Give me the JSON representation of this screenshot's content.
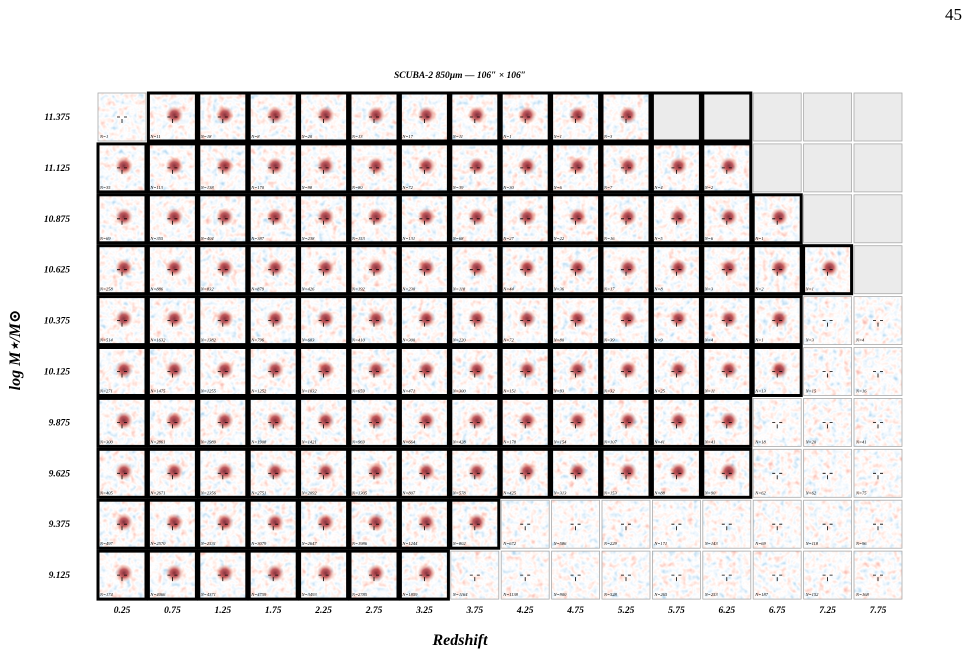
{
  "page_number": "45",
  "title": "SCUBA-2 850µm — 106″ × 106″",
  "xlabel": "Redshift",
  "ylabel": "log M⋆/M⊙",
  "columns": [
    "0.25",
    "0.75",
    "1.25",
    "1.75",
    "2.25",
    "2.75",
    "3.25",
    "3.75",
    "4.25",
    "4.75",
    "5.25",
    "5.75",
    "6.25",
    "6.75",
    "7.25",
    "7.75"
  ],
  "rows": [
    {
      "label": "11.375",
      "cells": [
        {
          "label": "N=1",
          "bold": false
        },
        {
          "label": "N=11",
          "bold": true
        },
        {
          "label": "N=18",
          "bold": true
        },
        {
          "label": "N=8",
          "bold": true
        },
        {
          "label": "N=20",
          "bold": true
        },
        {
          "label": "N=13",
          "bold": true
        },
        {
          "label": "N=17",
          "bold": true
        },
        {
          "label": "N=11",
          "bold": true
        },
        {
          "label": "N=1",
          "bold": true
        },
        {
          "label": "N=1",
          "bold": true
        },
        {
          "label": "N=3",
          "bold": true
        },
        {
          "bold": true
        },
        {
          "bold": true
        },
        {
          "bold": false
        },
        {
          "bold": false
        },
        {
          "bold": false
        }
      ]
    },
    {
      "label": "11.125",
      "cells": [
        {
          "label": "N=35",
          "bold": true
        },
        {
          "label": "N=113",
          "bold": true
        },
        {
          "label": "N=138",
          "bold": true
        },
        {
          "label": "N=170",
          "bold": true
        },
        {
          "label": "N=98",
          "bold": true
        },
        {
          "label": "N=80",
          "bold": true
        },
        {
          "label": "N=72",
          "bold": true
        },
        {
          "label": "N=39",
          "bold": true
        },
        {
          "label": "N=30",
          "bold": true
        },
        {
          "label": "N=6",
          "bold": true
        },
        {
          "label": "N=7",
          "bold": true
        },
        {
          "label": "N=4",
          "bold": true
        },
        {
          "label": "N=2",
          "bold": true
        },
        {
          "bold": false
        },
        {
          "bold": false
        },
        {
          "bold": false
        }
      ]
    },
    {
      "label": "10.875",
      "cells": [
        {
          "label": "N=69",
          "bold": true
        },
        {
          "label": "N=355",
          "bold": true
        },
        {
          "label": "N=404",
          "bold": true
        },
        {
          "label": "N=387",
          "bold": true
        },
        {
          "label": "N=238",
          "bold": true
        },
        {
          "label": "N=153",
          "bold": true
        },
        {
          "label": "N=131",
          "bold": true
        },
        {
          "label": "N=68",
          "bold": true
        },
        {
          "label": "N=27",
          "bold": true
        },
        {
          "label": "N=22",
          "bold": true
        },
        {
          "label": "N=16",
          "bold": true
        },
        {
          "label": "N=5",
          "bold": true
        },
        {
          "label": "N=6",
          "bold": true
        },
        {
          "label": "N=1",
          "bold": true
        },
        {
          "bold": false
        },
        {
          "bold": false
        }
      ]
    },
    {
      "label": "10.625",
      "cells": [
        {
          "label": "N=258",
          "bold": true
        },
        {
          "label": "N=886",
          "bold": true
        },
        {
          "label": "N=832",
          "bold": true
        },
        {
          "label": "N=879",
          "bold": true
        },
        {
          "label": "N=426",
          "bold": true
        },
        {
          "label": "N=192",
          "bold": true
        },
        {
          "label": "N=230",
          "bold": true
        },
        {
          "label": "N=118",
          "bold": true
        },
        {
          "label": "N=44",
          "bold": true
        },
        {
          "label": "N=36",
          "bold": true
        },
        {
          "label": "N=17",
          "bold": true
        },
        {
          "label": "N=8",
          "bold": true
        },
        {
          "label": "N=3",
          "bold": true
        },
        {
          "label": "N=2",
          "bold": true
        },
        {
          "label": "N=1",
          "bold": true
        },
        {
          "bold": false
        }
      ]
    },
    {
      "label": "10.375",
      "cells": [
        {
          "label": "N=514",
          "bold": true
        },
        {
          "label": "N=1632",
          "bold": true
        },
        {
          "label": "N=1382",
          "bold": true
        },
        {
          "label": "N=796",
          "bold": true
        },
        {
          "label": "N=603",
          "bold": true
        },
        {
          "label": "N=410",
          "bold": true
        },
        {
          "label": "N=300",
          "bold": true
        },
        {
          "label": "N=220",
          "bold": true
        },
        {
          "label": "N=72",
          "bold": true
        },
        {
          "label": "N=80",
          "bold": true
        },
        {
          "label": "N=39",
          "bold": true
        },
        {
          "label": "N=9",
          "bold": true
        },
        {
          "label": "N=4",
          "bold": true
        },
        {
          "label": "N=1",
          "bold": true
        },
        {
          "label": "N=3",
          "bold": false
        },
        {
          "label": "N=4",
          "bold": false
        }
      ]
    },
    {
      "label": "10.125",
      "cells": [
        {
          "label": "N=271",
          "bold": true
        },
        {
          "label": "N=1475",
          "bold": true
        },
        {
          "label": "N=1255",
          "bold": true
        },
        {
          "label": "N=1252",
          "bold": true
        },
        {
          "label": "N=1032",
          "bold": true
        },
        {
          "label": "N=659",
          "bold": true
        },
        {
          "label": "N=471",
          "bold": true
        },
        {
          "label": "N=300",
          "bold": true
        },
        {
          "label": "N=151",
          "bold": true
        },
        {
          "label": "N=93",
          "bold": true
        },
        {
          "label": "N=32",
          "bold": true
        },
        {
          "label": "N=25",
          "bold": true
        },
        {
          "label": "N=11",
          "bold": true
        },
        {
          "label": "N=13",
          "bold": true
        },
        {
          "label": "N=15",
          "bold": false
        },
        {
          "label": "N=16",
          "bold": false
        }
      ]
    },
    {
      "label": "9.875",
      "cells": [
        {
          "label": "N=300",
          "bold": true
        },
        {
          "label": "N=2861",
          "bold": true
        },
        {
          "label": "N=1989",
          "bold": true
        },
        {
          "label": "N=1908",
          "bold": true
        },
        {
          "label": "N=1421",
          "bold": true
        },
        {
          "label": "N=969",
          "bold": true
        },
        {
          "label": "N=664",
          "bold": true
        },
        {
          "label": "N=428",
          "bold": true
        },
        {
          "label": "N=178",
          "bold": true
        },
        {
          "label": "N=154",
          "bold": true
        },
        {
          "label": "N=107",
          "bold": true
        },
        {
          "label": "N=41",
          "bold": true
        },
        {
          "label": "N=41",
          "bold": true
        },
        {
          "label": "N=18",
          "bold": false
        },
        {
          "label": "N=20",
          "bold": false
        },
        {
          "label": "N=41",
          "bold": false
        }
      ]
    },
    {
      "label": "9.625",
      "cells": [
        {
          "label": "N=405",
          "bold": true
        },
        {
          "label": "N=2671",
          "bold": true
        },
        {
          "label": "N=2356",
          "bold": true
        },
        {
          "label": "N=2751",
          "bold": true
        },
        {
          "label": "N=2092",
          "bold": true
        },
        {
          "label": "N=1305",
          "bold": true
        },
        {
          "label": "N=807",
          "bold": true
        },
        {
          "label": "N=578",
          "bold": true
        },
        {
          "label": "N=425",
          "bold": true
        },
        {
          "label": "N=313",
          "bold": true
        },
        {
          "label": "N=153",
          "bold": true
        },
        {
          "label": "N=88",
          "bold": true
        },
        {
          "label": "N=90",
          "bold": true
        },
        {
          "label": "N=62",
          "bold": false
        },
        {
          "label": "N=62",
          "bold": false
        },
        {
          "label": "N=75",
          "bold": false
        }
      ]
    },
    {
      "label": "9.375",
      "cells": [
        {
          "label": "N=497",
          "bold": true
        },
        {
          "label": "N=2570",
          "bold": true
        },
        {
          "label": "N=2531",
          "bold": true
        },
        {
          "label": "N=3079",
          "bold": true
        },
        {
          "label": "N=2647",
          "bold": true
        },
        {
          "label": "N=1986",
          "bold": true
        },
        {
          "label": "N=1244",
          "bold": true
        },
        {
          "label": "N=802",
          "bold": true
        },
        {
          "label": "N=672",
          "bold": false
        },
        {
          "label": "N=586",
          "bold": false
        },
        {
          "label": "N=229",
          "bold": false
        },
        {
          "label": "N=171",
          "bold": false
        },
        {
          "label": "N=143",
          "bold": false
        },
        {
          "label": "N=69",
          "bold": false
        },
        {
          "label": "N=118",
          "bold": false
        },
        {
          "label": "N=96",
          "bold": false
        }
      ]
    },
    {
      "label": "9.125",
      "cells": [
        {
          "label": "N=174",
          "bold": true
        },
        {
          "label": "N=4066",
          "bold": true
        },
        {
          "label": "N=4371",
          "bold": true
        },
        {
          "label": "N=4759",
          "bold": true
        },
        {
          "label": "N=3493",
          "bold": true
        },
        {
          "label": "N=2785",
          "bold": true
        },
        {
          "label": "N=1859",
          "bold": true
        },
        {
          "label": "N=1164",
          "bold": false
        },
        {
          "label": "N=1138",
          "bold": false
        },
        {
          "label": "N=900",
          "bold": false
        },
        {
          "label": "N=528",
          "bold": false
        },
        {
          "label": "N=265",
          "bold": false
        },
        {
          "label": "N=253",
          "bold": false
        },
        {
          "label": "N=187",
          "bold": false
        },
        {
          "label": "N=152",
          "bold": false
        },
        {
          "label": "N=168",
          "bold": false
        }
      ]
    }
  ]
}
